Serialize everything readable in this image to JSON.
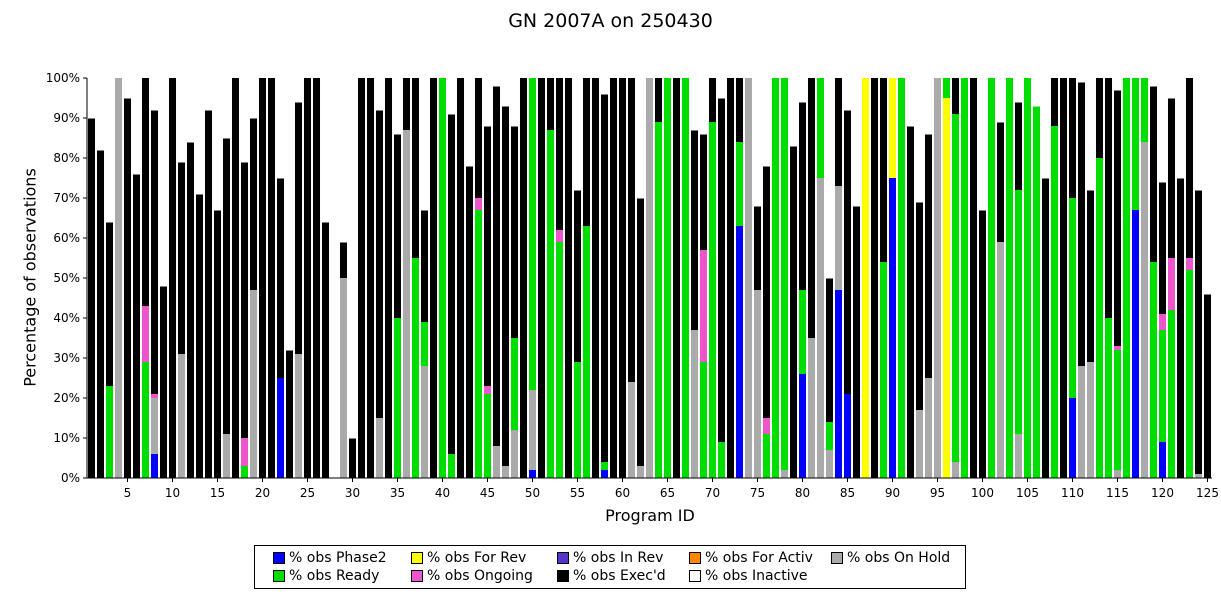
{
  "chart_data": {
    "type": "bar",
    "stacked": true,
    "title": "GN 2007A on 250430",
    "xlabel": "Program ID",
    "ylabel": "Percentage of observations",
    "ylim": [
      0,
      100
    ],
    "y_ticks": [
      "0%",
      "10%",
      "20%",
      "30%",
      "40%",
      "50%",
      "60%",
      "70%",
      "80%",
      "90%",
      "100%"
    ],
    "x_ticks": [
      5,
      10,
      15,
      20,
      25,
      30,
      35,
      40,
      45,
      50,
      55,
      60,
      65,
      70,
      75,
      80,
      85,
      90,
      95,
      100,
      105,
      110,
      115,
      120,
      125
    ],
    "legend": [
      {
        "label": "% obs Phase2",
        "color": "#0000ff"
      },
      {
        "label": "% obs For Rev",
        "color": "#ffff00"
      },
      {
        "label": "% obs In Rev",
        "color": "#5533cc"
      },
      {
        "label": "% obs For Activ",
        "color": "#ff8800"
      },
      {
        "label": "% obs On Hold",
        "color": "#aaaaaa"
      },
      {
        "label": "% obs Ready",
        "color": "#00dd00"
      },
      {
        "label": "% obs Ongoing",
        "color": "#ee55cc"
      },
      {
        "label": "% obs Exec'd",
        "color": "#000000"
      },
      {
        "label": "% obs Inactive",
        "color": "#ffffff"
      }
    ],
    "series_order": [
      "phase2",
      "forrev",
      "onhold",
      "ready",
      "ongoing",
      "execd",
      "inactive"
    ],
    "colors": {
      "phase2": "#0000ff",
      "forrev": "#ffff00",
      "onhold": "#aaaaaa",
      "ready": "#00dd00",
      "ongoing": "#ee55cc",
      "execd": "#000000",
      "inactive": "#ffffff"
    },
    "bars": [
      [
        0,
        0,
        0,
        0,
        0,
        90,
        10
      ],
      [
        0,
        0,
        0,
        0,
        0,
        82,
        18
      ],
      [
        0,
        0,
        0,
        23,
        0,
        41,
        36
      ],
      [
        0,
        0,
        100,
        0,
        0,
        0,
        0
      ],
      [
        0,
        0,
        0,
        0,
        0,
        95,
        5
      ],
      [
        0,
        0,
        0,
        0,
        0,
        76,
        24
      ],
      [
        0,
        0,
        0,
        29,
        14,
        57,
        0
      ],
      [
        6,
        0,
        14,
        0,
        1,
        71,
        8
      ],
      [
        0,
        0,
        0,
        0,
        0,
        48,
        52
      ],
      [
        0,
        0,
        0,
        0,
        0,
        100,
        0
      ],
      [
        0,
        0,
        31,
        0,
        0,
        48,
        21
      ],
      [
        0,
        0,
        0,
        0,
        0,
        84,
        16
      ],
      [
        0,
        0,
        0,
        0,
        0,
        71,
        29
      ],
      [
        0,
        0,
        0,
        0,
        0,
        92,
        8
      ],
      [
        0,
        0,
        0,
        0,
        0,
        67,
        33
      ],
      [
        0,
        0,
        11,
        0,
        0,
        74,
        15
      ],
      [
        0,
        0,
        0,
        0,
        0,
        100,
        0
      ],
      [
        0,
        0,
        0,
        3,
        7,
        69,
        21
      ],
      [
        0,
        0,
        47,
        0,
        0,
        43,
        10
      ],
      [
        0,
        0,
        0,
        0,
        0,
        100,
        0
      ],
      [
        0,
        0,
        0,
        0,
        0,
        100,
        0
      ],
      [
        25,
        0,
        0,
        0,
        0,
        50,
        25
      ],
      [
        0,
        0,
        0,
        0,
        0,
        32,
        68
      ],
      [
        0,
        0,
        31,
        0,
        0,
        63,
        6
      ],
      [
        0,
        0,
        0,
        0,
        0,
        100,
        0
      ],
      [
        0,
        0,
        0,
        0,
        0,
        100,
        0
      ],
      [
        0,
        0,
        0,
        0,
        0,
        64,
        36
      ],
      [
        0,
        0,
        0,
        0,
        0,
        0,
        100
      ],
      [
        0,
        0,
        50,
        0,
        0,
        9,
        41
      ],
      [
        0,
        0,
        0,
        0,
        0,
        10,
        90
      ],
      [
        0,
        0,
        0,
        0,
        0,
        100,
        0
      ],
      [
        0,
        0,
        0,
        0,
        0,
        100,
        0
      ],
      [
        0,
        0,
        15,
        0,
        0,
        77,
        8
      ],
      [
        0,
        0,
        0,
        0,
        0,
        100,
        0
      ],
      [
        0,
        0,
        0,
        40,
        0,
        46,
        14
      ],
      [
        0,
        0,
        87,
        0,
        0,
        13,
        0
      ],
      [
        0,
        0,
        0,
        55,
        0,
        45,
        0
      ],
      [
        0,
        0,
        28,
        11,
        0,
        28,
        33
      ],
      [
        0,
        0,
        0,
        0,
        0,
        100,
        0
      ],
      [
        0,
        0,
        0,
        100,
        0,
        0,
        0
      ],
      [
        0,
        0,
        0,
        6,
        0,
        85,
        9
      ],
      [
        0,
        0,
        0,
        0,
        0,
        100,
        0
      ],
      [
        0,
        0,
        0,
        0,
        0,
        78,
        22
      ],
      [
        0,
        0,
        0,
        67,
        3,
        30,
        0
      ],
      [
        0,
        0,
        0,
        21,
        2,
        65,
        12
      ],
      [
        0,
        0,
        8,
        0,
        0,
        90,
        2
      ],
      [
        0,
        0,
        3,
        0,
        0,
        90,
        7
      ],
      [
        0,
        0,
        12,
        23,
        0,
        53,
        12
      ],
      [
        0,
        0,
        0,
        0,
        0,
        100,
        0
      ],
      [
        2,
        0,
        20,
        78,
        0,
        0,
        0
      ],
      [
        0,
        0,
        0,
        0,
        0,
        100,
        0
      ],
      [
        0,
        0,
        0,
        87,
        0,
        13,
        0
      ],
      [
        0,
        0,
        0,
        59,
        3,
        38,
        0
      ],
      [
        0,
        0,
        0,
        0,
        0,
        100,
        0
      ],
      [
        0,
        0,
        0,
        29,
        0,
        43,
        28
      ],
      [
        0,
        0,
        0,
        63,
        0,
        37,
        0
      ],
      [
        0,
        0,
        0,
        0,
        0,
        100,
        0
      ],
      [
        2,
        0,
        0,
        2,
        0,
        92,
        4
      ],
      [
        0,
        0,
        0,
        0,
        0,
        100,
        0
      ],
      [
        0,
        0,
        0,
        0,
        0,
        100,
        0
      ],
      [
        0,
        0,
        24,
        0,
        0,
        76,
        0
      ],
      [
        0,
        0,
        3,
        0,
        0,
        67,
        30
      ],
      [
        0,
        0,
        100,
        0,
        0,
        0,
        0
      ],
      [
        0,
        0,
        0,
        89,
        0,
        11,
        0
      ],
      [
        0,
        0,
        0,
        100,
        0,
        0,
        0
      ],
      [
        0,
        0,
        0,
        0,
        0,
        100,
        0
      ],
      [
        0,
        0,
        0,
        100,
        0,
        0,
        0
      ],
      [
        0,
        0,
        37,
        0,
        0,
        50,
        13
      ],
      [
        0,
        0,
        0,
        29,
        28,
        29,
        14
      ],
      [
        0,
        0,
        0,
        89,
        0,
        11,
        0
      ],
      [
        0,
        0,
        0,
        9,
        0,
        86,
        5
      ],
      [
        0,
        0,
        0,
        0,
        0,
        100,
        0
      ],
      [
        63,
        0,
        0,
        21,
        0,
        16,
        0
      ],
      [
        0,
        0,
        100,
        0,
        0,
        0,
        0
      ],
      [
        0,
        0,
        47,
        0,
        0,
        21,
        32
      ],
      [
        0,
        0,
        0,
        11,
        4,
        63,
        22
      ],
      [
        0,
        0,
        0,
        100,
        0,
        0,
        0
      ],
      [
        0,
        0,
        2,
        98,
        0,
        0,
        0
      ],
      [
        0,
        0,
        0,
        0,
        0,
        83,
        17
      ],
      [
        26,
        0,
        0,
        21,
        0,
        47,
        6
      ],
      [
        0,
        0,
        35,
        0,
        0,
        65,
        0
      ],
      [
        0,
        0,
        75,
        25,
        0,
        0,
        0
      ],
      [
        0,
        0,
        7,
        7,
        0,
        36,
        50
      ],
      [
        47,
        0,
        26,
        0,
        0,
        27,
        0
      ],
      [
        21,
        0,
        0,
        0,
        0,
        71,
        8
      ],
      [
        0,
        0,
        0,
        0,
        0,
        68,
        32
      ],
      [
        0,
        100,
        0,
        0,
        0,
        0,
        0
      ],
      [
        0,
        0,
        0,
        0,
        0,
        100,
        0
      ],
      [
        0,
        0,
        0,
        54,
        0,
        46,
        0
      ],
      [
        75,
        25,
        0,
        0,
        0,
        0,
        0
      ],
      [
        0,
        0,
        0,
        100,
        0,
        0,
        0
      ],
      [
        0,
        0,
        0,
        0,
        0,
        88,
        12
      ],
      [
        0,
        0,
        17,
        0,
        0,
        52,
        31
      ],
      [
        0,
        0,
        25,
        0,
        0,
        61,
        14
      ],
      [
        0,
        0,
        100,
        0,
        0,
        0,
        0
      ],
      [
        0,
        95,
        0,
        5,
        0,
        0,
        0
      ],
      [
        0,
        0,
        4,
        87,
        0,
        9,
        0
      ],
      [
        0,
        0,
        0,
        100,
        0,
        0,
        0
      ],
      [
        0,
        0,
        0,
        0,
        0,
        100,
        0
      ],
      [
        0,
        0,
        0,
        0,
        0,
        67,
        33
      ],
      [
        0,
        0,
        0,
        100,
        0,
        0,
        0
      ],
      [
        0,
        0,
        59,
        0,
        0,
        30,
        11
      ],
      [
        0,
        0,
        0,
        100,
        0,
        0,
        0
      ],
      [
        0,
        0,
        11,
        61,
        0,
        22,
        6
      ],
      [
        0,
        0,
        0,
        100,
        0,
        0,
        0
      ],
      [
        0,
        0,
        0,
        93,
        0,
        0,
        7
      ],
      [
        0,
        0,
        0,
        0,
        0,
        75,
        25
      ],
      [
        0,
        0,
        0,
        88,
        0,
        12,
        0
      ],
      [
        0,
        0,
        0,
        0,
        0,
        100,
        0
      ],
      [
        20,
        0,
        0,
        50,
        0,
        30,
        0
      ],
      [
        0,
        0,
        28,
        0,
        0,
        71,
        1
      ],
      [
        0,
        0,
        29,
        0,
        0,
        43,
        28
      ],
      [
        0,
        0,
        0,
        80,
        0,
        20,
        0
      ],
      [
        0,
        0,
        0,
        40,
        0,
        60,
        0
      ],
      [
        0,
        0,
        2,
        30,
        1,
        64,
        3
      ],
      [
        0,
        0,
        0,
        100,
        0,
        0,
        0
      ],
      [
        67,
        0,
        0,
        33,
        0,
        0,
        0
      ],
      [
        0,
        0,
        84,
        16,
        0,
        0,
        0
      ],
      [
        0,
        0,
        0,
        54,
        0,
        44,
        2
      ],
      [
        9,
        0,
        0,
        28,
        4,
        33,
        26
      ],
      [
        0,
        0,
        0,
        42,
        13,
        40,
        5
      ],
      [
        0,
        0,
        0,
        0,
        0,
        75,
        25
      ],
      [
        0,
        0,
        0,
        52,
        3,
        45,
        0
      ],
      [
        0,
        0,
        1,
        0,
        0,
        71,
        28
      ],
      [
        0,
        0,
        0,
        0,
        0,
        46,
        54
      ]
    ]
  }
}
